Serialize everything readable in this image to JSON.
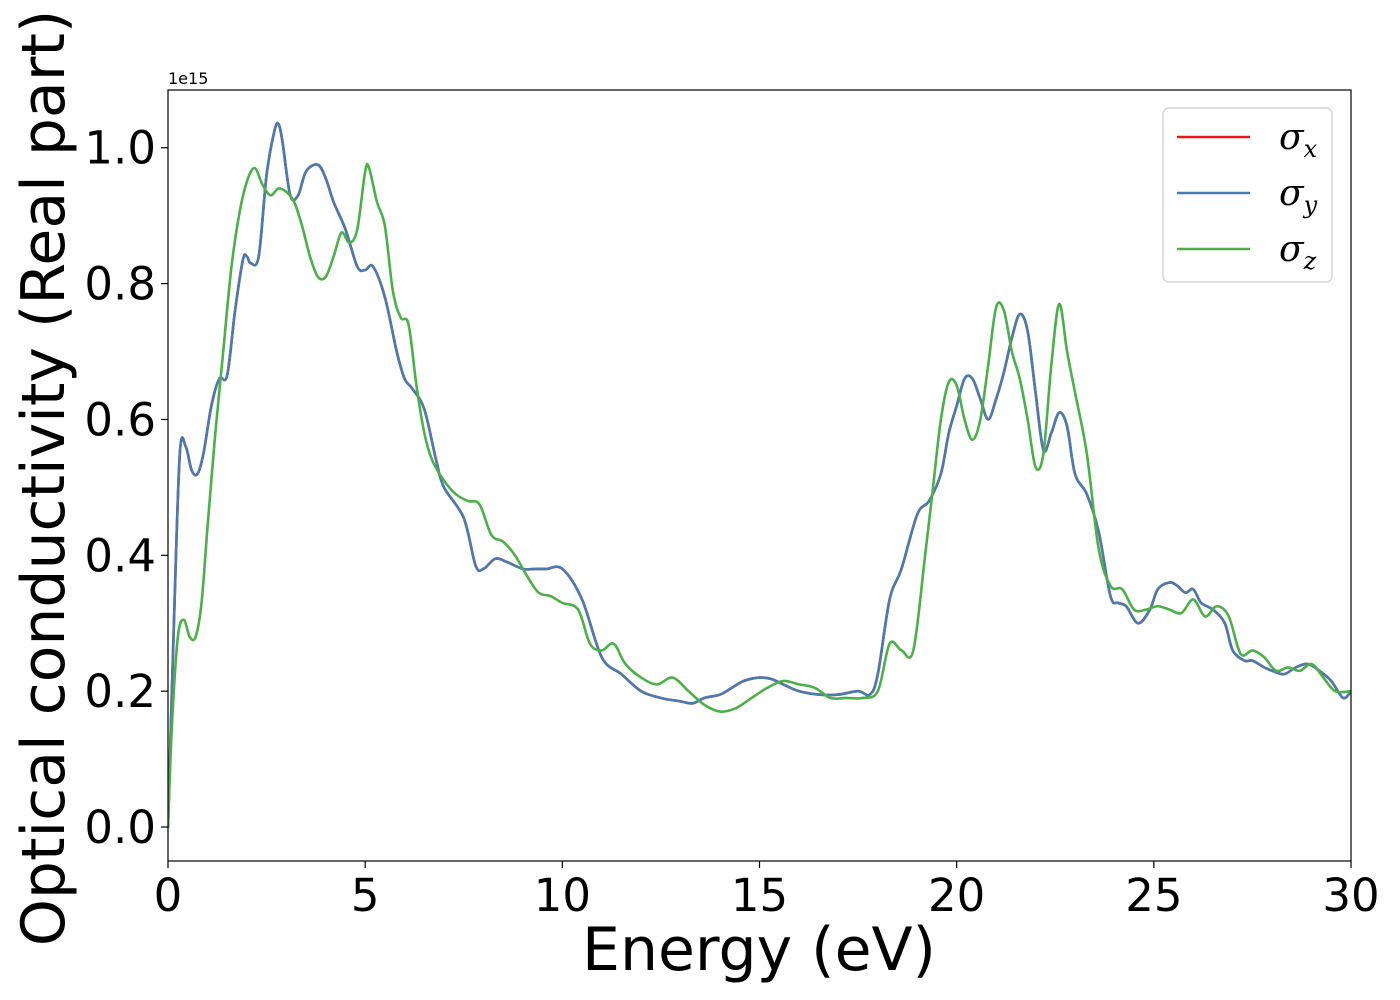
{
  "chart_data": {
    "type": "line",
    "title": "",
    "xlabel": "Energy (eV)",
    "ylabel": "Optical conductivity (Real part)",
    "y_offset_label": "1e15",
    "xlim": [
      0,
      30
    ],
    "ylim": [
      -0.05,
      1.085
    ],
    "grid": false,
    "legend_position": "top-right",
    "x_ticks": [
      0,
      5,
      10,
      15,
      20,
      25,
      30
    ],
    "x_tick_labels": [
      "0",
      "5",
      "10",
      "15",
      "20",
      "25",
      "30"
    ],
    "y_ticks": [
      0.0,
      0.2,
      0.4,
      0.6,
      0.8,
      1.0
    ],
    "y_tick_labels": [
      "0.0",
      "0.2",
      "0.4",
      "0.6",
      "0.8",
      "1.0"
    ],
    "series": [
      {
        "name": "σx",
        "symbol": "σ",
        "subscript": "x",
        "color": "#e41a1c",
        "x": [
          0,
          0.15,
          0.3,
          0.45,
          0.6,
          0.75,
          0.9,
          1.1,
          1.3,
          1.5,
          1.7,
          1.9,
          2.0,
          2.1,
          2.3,
          2.5,
          2.7,
          2.8,
          2.9,
          3.1,
          3.3,
          3.5,
          3.8,
          4.0,
          4.2,
          4.5,
          4.8,
          5.0,
          5.2,
          5.5,
          5.8,
          6.0,
          6.2,
          6.5,
          6.8,
          7.0,
          7.5,
          7.8,
          8.0,
          8.3,
          8.6,
          9.0,
          9.3,
          9.6,
          10.0,
          10.5,
          11.0,
          11.5,
          12.0,
          12.5,
          13.0,
          13.3,
          13.6,
          14.0,
          14.3,
          14.6,
          15.0,
          15.3,
          15.6,
          16.0,
          16.5,
          17.0,
          17.5,
          17.8,
          18.0,
          18.3,
          18.6,
          19.0,
          19.3,
          19.6,
          19.8,
          20.0,
          20.2,
          20.4,
          20.6,
          20.8,
          21.0,
          21.2,
          21.4,
          21.6,
          21.8,
          22.0,
          22.2,
          22.4,
          22.6,
          22.8,
          23.0,
          23.3,
          23.6,
          23.9,
          24.1,
          24.3,
          24.6,
          24.9,
          25.1,
          25.4,
          25.6,
          25.8,
          26.0,
          26.2,
          26.5,
          26.8,
          27.0,
          27.3,
          27.5,
          27.8,
          28.0,
          28.3,
          28.6,
          28.9,
          29.2,
          29.5,
          29.8,
          30.0
        ],
        "values": [
          0.0,
          0.3,
          0.55,
          0.56,
          0.525,
          0.52,
          0.55,
          0.62,
          0.66,
          0.665,
          0.76,
          0.835,
          0.84,
          0.83,
          0.84,
          0.96,
          1.025,
          1.035,
          1.01,
          0.93,
          0.93,
          0.965,
          0.975,
          0.955,
          0.92,
          0.88,
          0.825,
          0.82,
          0.825,
          0.78,
          0.7,
          0.66,
          0.645,
          0.615,
          0.54,
          0.5,
          0.455,
          0.385,
          0.38,
          0.395,
          0.39,
          0.38,
          0.38,
          0.38,
          0.38,
          0.335,
          0.25,
          0.225,
          0.2,
          0.19,
          0.185,
          0.182,
          0.19,
          0.195,
          0.205,
          0.215,
          0.22,
          0.218,
          0.21,
          0.2,
          0.195,
          0.195,
          0.2,
          0.195,
          0.225,
          0.335,
          0.38,
          0.46,
          0.48,
          0.52,
          0.58,
          0.62,
          0.66,
          0.66,
          0.63,
          0.6,
          0.63,
          0.67,
          0.72,
          0.755,
          0.73,
          0.64,
          0.555,
          0.58,
          0.61,
          0.59,
          0.52,
          0.49,
          0.435,
          0.34,
          0.33,
          0.325,
          0.3,
          0.32,
          0.35,
          0.36,
          0.355,
          0.345,
          0.35,
          0.33,
          0.32,
          0.3,
          0.26,
          0.245,
          0.245,
          0.235,
          0.23,
          0.225,
          0.235,
          0.24,
          0.23,
          0.215,
          0.19,
          0.2
        ]
      },
      {
        "name": "σy",
        "symbol": "σ",
        "subscript": "y",
        "color": "#4a7bb0",
        "x": [
          0,
          0.15,
          0.3,
          0.45,
          0.6,
          0.75,
          0.9,
          1.1,
          1.3,
          1.5,
          1.7,
          1.9,
          2.0,
          2.1,
          2.3,
          2.5,
          2.7,
          2.8,
          2.9,
          3.1,
          3.3,
          3.5,
          3.8,
          4.0,
          4.2,
          4.5,
          4.8,
          5.0,
          5.2,
          5.5,
          5.8,
          6.0,
          6.2,
          6.5,
          6.8,
          7.0,
          7.5,
          7.8,
          8.0,
          8.3,
          8.6,
          9.0,
          9.3,
          9.6,
          10.0,
          10.5,
          11.0,
          11.5,
          12.0,
          12.5,
          13.0,
          13.3,
          13.6,
          14.0,
          14.3,
          14.6,
          15.0,
          15.3,
          15.6,
          16.0,
          16.5,
          17.0,
          17.5,
          17.8,
          18.0,
          18.3,
          18.6,
          19.0,
          19.3,
          19.6,
          19.8,
          20.0,
          20.2,
          20.4,
          20.6,
          20.8,
          21.0,
          21.2,
          21.4,
          21.6,
          21.8,
          22.0,
          22.2,
          22.4,
          22.6,
          22.8,
          23.0,
          23.3,
          23.6,
          23.9,
          24.1,
          24.3,
          24.6,
          24.9,
          25.1,
          25.4,
          25.6,
          25.8,
          26.0,
          26.2,
          26.5,
          26.8,
          27.0,
          27.3,
          27.5,
          27.8,
          28.0,
          28.3,
          28.6,
          28.9,
          29.2,
          29.5,
          29.8,
          30.0
        ],
        "values": [
          0.0,
          0.3,
          0.55,
          0.56,
          0.525,
          0.52,
          0.55,
          0.62,
          0.66,
          0.665,
          0.76,
          0.835,
          0.84,
          0.83,
          0.84,
          0.96,
          1.025,
          1.035,
          1.01,
          0.93,
          0.93,
          0.965,
          0.975,
          0.955,
          0.92,
          0.88,
          0.825,
          0.82,
          0.825,
          0.78,
          0.7,
          0.66,
          0.645,
          0.615,
          0.54,
          0.5,
          0.455,
          0.385,
          0.38,
          0.395,
          0.39,
          0.38,
          0.38,
          0.38,
          0.38,
          0.335,
          0.25,
          0.225,
          0.2,
          0.19,
          0.185,
          0.182,
          0.19,
          0.195,
          0.205,
          0.215,
          0.22,
          0.218,
          0.21,
          0.2,
          0.195,
          0.195,
          0.2,
          0.195,
          0.225,
          0.335,
          0.38,
          0.46,
          0.48,
          0.52,
          0.58,
          0.62,
          0.66,
          0.66,
          0.63,
          0.6,
          0.63,
          0.67,
          0.72,
          0.755,
          0.73,
          0.64,
          0.555,
          0.58,
          0.61,
          0.59,
          0.52,
          0.49,
          0.435,
          0.34,
          0.33,
          0.325,
          0.3,
          0.32,
          0.35,
          0.36,
          0.355,
          0.345,
          0.35,
          0.33,
          0.32,
          0.3,
          0.26,
          0.245,
          0.245,
          0.235,
          0.23,
          0.225,
          0.235,
          0.24,
          0.23,
          0.215,
          0.19,
          0.2
        ]
      },
      {
        "name": "σz",
        "symbol": "σ",
        "subscript": "z",
        "color": "#4daf4a",
        "x": [
          0,
          0.1,
          0.25,
          0.4,
          0.55,
          0.7,
          0.85,
          1.0,
          1.2,
          1.4,
          1.6,
          1.8,
          2.0,
          2.2,
          2.4,
          2.6,
          2.8,
          3.0,
          3.2,
          3.4,
          3.6,
          3.8,
          4.0,
          4.2,
          4.4,
          4.6,
          4.8,
          5.0,
          5.1,
          5.3,
          5.5,
          5.7,
          5.9,
          6.1,
          6.3,
          6.5,
          6.7,
          7.0,
          7.3,
          7.6,
          7.9,
          8.2,
          8.5,
          8.8,
          9.1,
          9.4,
          9.7,
          10.0,
          10.4,
          10.7,
          11.0,
          11.3,
          11.6,
          12.0,
          12.4,
          12.8,
          13.2,
          13.6,
          14.0,
          14.4,
          14.8,
          15.2,
          15.6,
          16.0,
          16.4,
          16.8,
          17.2,
          17.6,
          18.0,
          18.3,
          18.6,
          18.9,
          19.2,
          19.4,
          19.6,
          19.8,
          20.0,
          20.2,
          20.4,
          20.6,
          20.8,
          21.0,
          21.2,
          21.4,
          21.6,
          21.8,
          22.0,
          22.2,
          22.4,
          22.6,
          22.8,
          23.0,
          23.3,
          23.6,
          23.9,
          24.2,
          24.5,
          24.8,
          25.1,
          25.4,
          25.7,
          26.0,
          26.3,
          26.6,
          26.9,
          27.2,
          27.5,
          27.8,
          28.1,
          28.4,
          28.7,
          29.0,
          29.3,
          29.6,
          30.0
        ],
        "values": [
          0.0,
          0.15,
          0.28,
          0.305,
          0.28,
          0.28,
          0.33,
          0.44,
          0.58,
          0.7,
          0.82,
          0.9,
          0.95,
          0.97,
          0.945,
          0.93,
          0.94,
          0.935,
          0.92,
          0.885,
          0.84,
          0.81,
          0.81,
          0.84,
          0.875,
          0.86,
          0.88,
          0.965,
          0.97,
          0.92,
          0.885,
          0.79,
          0.75,
          0.74,
          0.65,
          0.58,
          0.54,
          0.51,
          0.49,
          0.48,
          0.475,
          0.43,
          0.42,
          0.4,
          0.37,
          0.345,
          0.34,
          0.33,
          0.32,
          0.27,
          0.26,
          0.27,
          0.24,
          0.22,
          0.21,
          0.22,
          0.2,
          0.18,
          0.17,
          0.175,
          0.19,
          0.205,
          0.215,
          0.21,
          0.205,
          0.19,
          0.19,
          0.19,
          0.2,
          0.27,
          0.26,
          0.26,
          0.4,
          0.5,
          0.6,
          0.655,
          0.65,
          0.6,
          0.57,
          0.6,
          0.68,
          0.765,
          0.76,
          0.7,
          0.66,
          0.6,
          0.53,
          0.55,
          0.68,
          0.77,
          0.7,
          0.64,
          0.55,
          0.41,
          0.355,
          0.35,
          0.32,
          0.32,
          0.325,
          0.32,
          0.315,
          0.335,
          0.31,
          0.325,
          0.31,
          0.255,
          0.26,
          0.25,
          0.23,
          0.235,
          0.23,
          0.24,
          0.22,
          0.2,
          0.2
        ]
      }
    ]
  }
}
